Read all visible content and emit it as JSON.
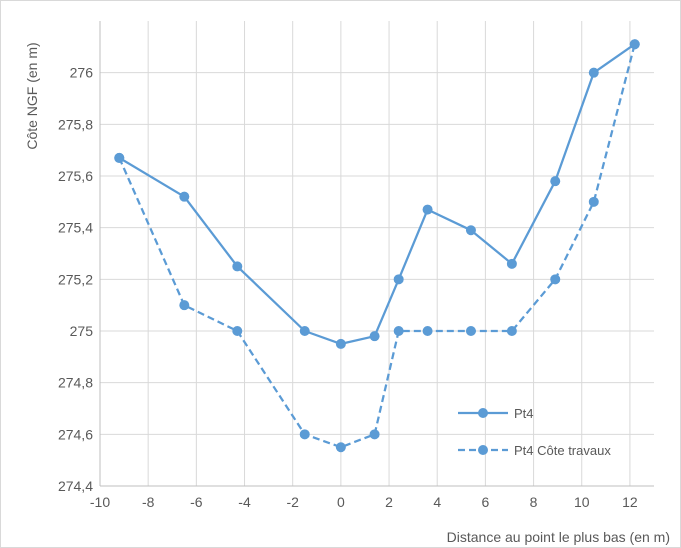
{
  "chart_data": {
    "type": "line",
    "title": "",
    "xlabel": "Distance au point le plus bas (en m)",
    "ylabel": "Côte NGF (en m)",
    "xlim": [
      -10,
      13
    ],
    "ylim": [
      274.4,
      276.2
    ],
    "x_ticks": [
      -10,
      -8,
      -6,
      -4,
      -2,
      0,
      2,
      4,
      6,
      8,
      10,
      12
    ],
    "x_tick_labels": [
      "-10",
      "-8",
      "-6",
      "-4",
      "-2",
      "0",
      "2",
      "4",
      "6",
      "8",
      "10",
      "12"
    ],
    "y_ticks": [
      274.4,
      274.6,
      274.8,
      275,
      275.2,
      275.4,
      275.6,
      275.8,
      276
    ],
    "y_tick_labels": [
      "274,4",
      "274,6",
      "274,8",
      "275",
      "275,2",
      "275,4",
      "275,6",
      "275,8",
      "276"
    ],
    "grid": true,
    "legend_position": "bottom-right",
    "series": [
      {
        "name": "Pt4",
        "style": "solid",
        "color": "#5b9bd5",
        "points": [
          [
            -9.2,
            275.67
          ],
          [
            -6.5,
            275.52
          ],
          [
            -4.3,
            275.25
          ],
          [
            -1.5,
            275.0
          ],
          [
            0.0,
            274.95
          ],
          [
            1.4,
            274.98
          ],
          [
            2.4,
            275.2
          ],
          [
            3.6,
            275.47
          ],
          [
            5.4,
            275.39
          ],
          [
            7.1,
            275.26
          ],
          [
            8.9,
            275.58
          ],
          [
            10.5,
            276.0
          ],
          [
            12.2,
            276.11
          ]
        ]
      },
      {
        "name": "Pt4 Côte travaux",
        "style": "dashed",
        "color": "#5b9bd5",
        "points": [
          [
            -9.2,
            275.67
          ],
          [
            -6.5,
            275.1
          ],
          [
            -4.3,
            275.0
          ],
          [
            -1.5,
            274.6
          ],
          [
            0.0,
            274.55
          ],
          [
            1.4,
            274.6
          ],
          [
            2.4,
            275.0
          ],
          [
            3.6,
            275.0
          ],
          [
            5.4,
            275.0
          ],
          [
            7.1,
            275.0
          ],
          [
            8.9,
            275.2
          ],
          [
            10.5,
            275.5
          ],
          [
            12.2,
            276.11
          ]
        ]
      }
    ]
  }
}
